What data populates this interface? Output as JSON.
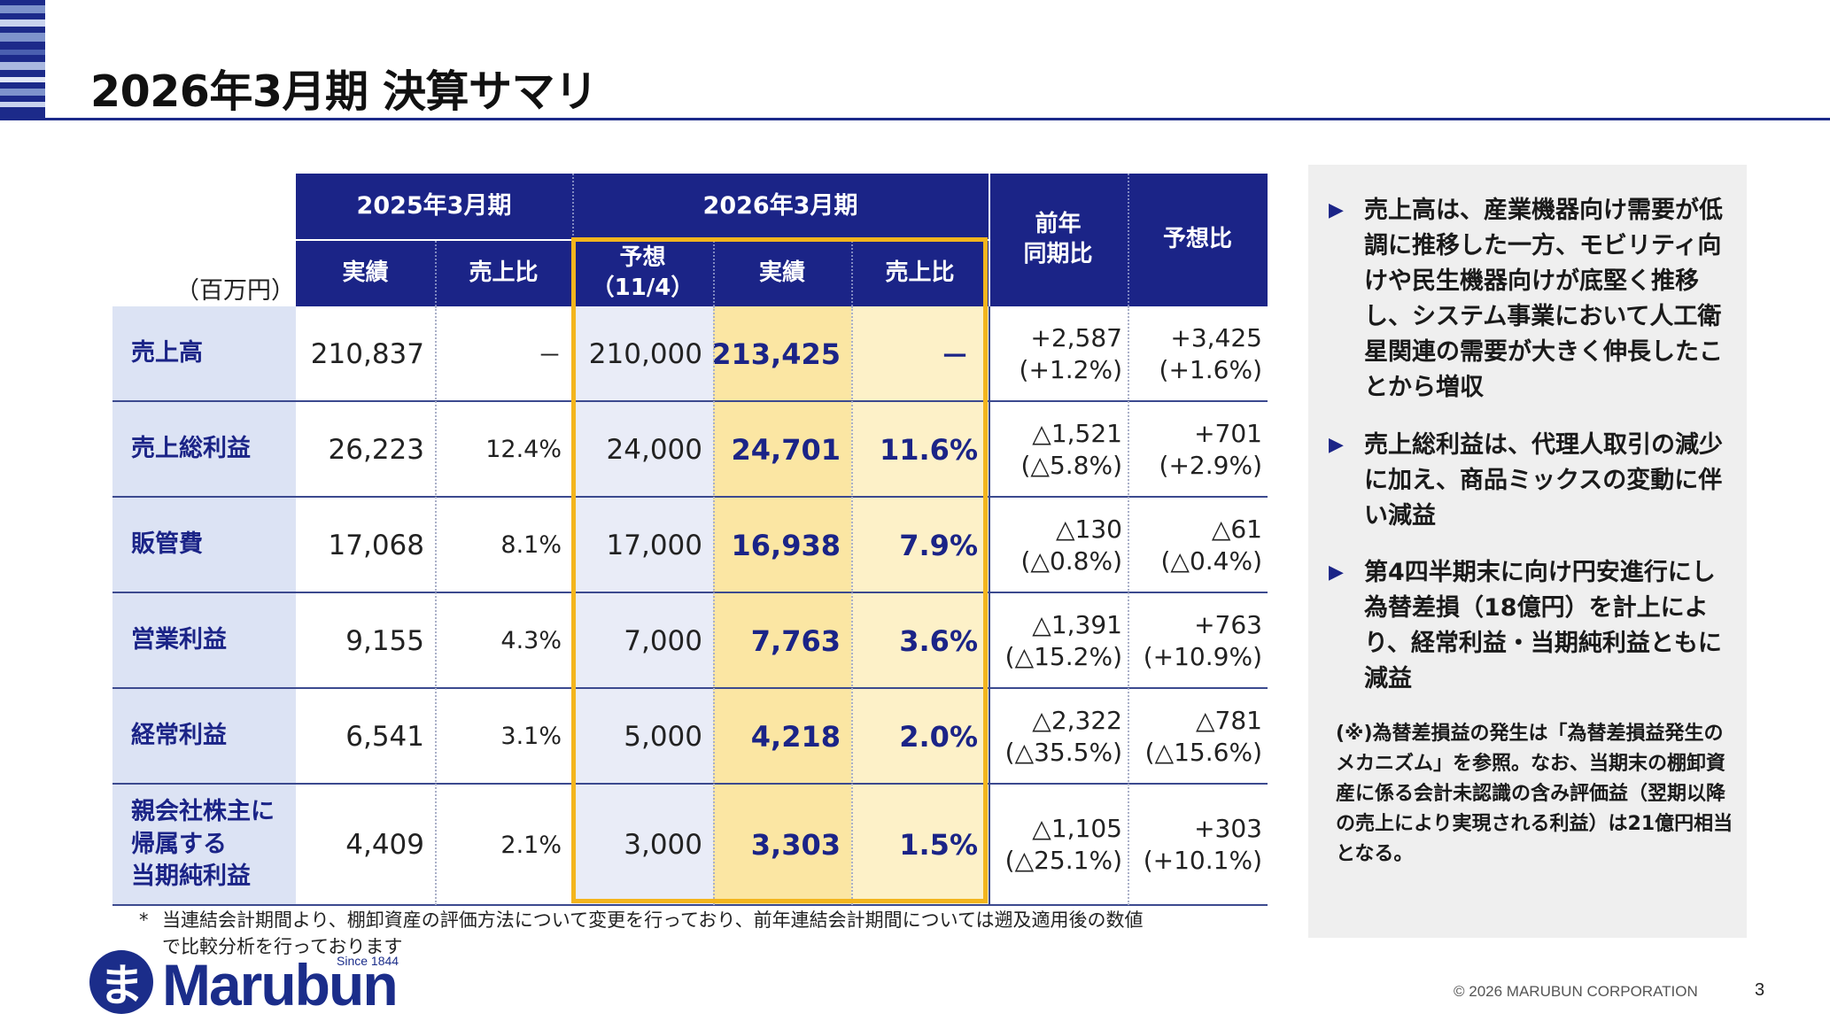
{
  "title": "2026年3月期 決算サマリ",
  "unit": "（百万円）",
  "header": {
    "period_prev": "2025年3月期",
    "period_curr": "2026年3月期",
    "yoy": "前年\n同期比",
    "vs_forecast": "予想比",
    "prev_actual": "実績",
    "prev_ratio": "売上比",
    "forecast": "予想\n（11/4）",
    "curr_actual": "実績",
    "curr_ratio": "売上比"
  },
  "rows": [
    {
      "label": "売上高",
      "prev_actual": "210,837",
      "prev_ratio": "－",
      "forecast": "210,000",
      "curr_actual": "213,425",
      "curr_ratio": "－",
      "yoy_amount": "+2,587",
      "yoy_pct": "(+1.2%)",
      "vs_fc_amount": "+3,425",
      "vs_fc_pct": "(+1.6%)"
    },
    {
      "label": "売上総利益",
      "prev_actual": "26,223",
      "prev_ratio": "12.4%",
      "forecast": "24,000",
      "curr_actual": "24,701",
      "curr_ratio": "11.6%",
      "yoy_amount": "△1,521",
      "yoy_pct": "(△5.8%)",
      "vs_fc_amount": "+701",
      "vs_fc_pct": "(+2.9%)"
    },
    {
      "label": "販管費",
      "prev_actual": "17,068",
      "prev_ratio": "8.1%",
      "forecast": "17,000",
      "curr_actual": "16,938",
      "curr_ratio": "7.9%",
      "yoy_amount": "△130",
      "yoy_pct": "(△0.8%)",
      "vs_fc_amount": "△61",
      "vs_fc_pct": "(△0.4%)"
    },
    {
      "label": "営業利益",
      "prev_actual": "9,155",
      "prev_ratio": "4.3%",
      "forecast": "7,000",
      "curr_actual": "7,763",
      "curr_ratio": "3.6%",
      "yoy_amount": "△1,391",
      "yoy_pct": "(△15.2%)",
      "vs_fc_amount": "+763",
      "vs_fc_pct": "(+10.9%)"
    },
    {
      "label": "経常利益",
      "prev_actual": "6,541",
      "prev_ratio": "3.1%",
      "forecast": "5,000",
      "curr_actual": "4,218",
      "curr_ratio": "2.0%",
      "yoy_amount": "△2,322",
      "yoy_pct": "(△35.5%)",
      "vs_fc_amount": "△781",
      "vs_fc_pct": "(△15.6%)"
    },
    {
      "label": "親会社株主に\n帰属する\n当期純利益",
      "prev_actual": "4,409",
      "prev_ratio": "2.1%",
      "forecast": "3,000",
      "curr_actual": "3,303",
      "curr_ratio": "1.5%",
      "yoy_amount": "△1,105",
      "yoy_pct": "(△25.1%)",
      "vs_fc_amount": "+303",
      "vs_fc_pct": "(+10.1%)"
    }
  ],
  "footnote": {
    "marker": "*",
    "text": "当連結会計期間より、棚卸資産の評価方法について変更を行っており、前年連結会計期間については遡及適用後の数値で比較分析を行っております"
  },
  "bullets": [
    "売上高は、産業機器向け需要が低調に推移した一方、モビリティ向けや民生機器向けが底堅く推移し、システム事業において人工衛星関連の需要が大きく伸長したことから増収",
    "売上総利益は、代理人取引の減少に加え、商品ミックスの変動に伴い減益",
    "第4四半期末に向け円安進行にし為替差損（18億円）を計上により、経常利益・当期純利益ともに減益"
  ],
  "bullet_marker": "▶",
  "panel_note": "(※)為替差損益の発生は「為替差損益発生のメカニズム」を参照。なお、当期末の棚卸資産に係る会計未認識の含み評価益（翌期以降の売上により実現される利益）は21億円相当となる。",
  "logo": {
    "mark": "ま",
    "name": "Marubun",
    "since": "Since 1844"
  },
  "copyright": "© 2026 MARUBUN CORPORATION",
  "page_number": "3",
  "colors": {
    "navy": "#1b2487",
    "gold": "#f3b51e",
    "label_bg": "#dce3f4",
    "actual_bg": "#fbe6a3"
  }
}
